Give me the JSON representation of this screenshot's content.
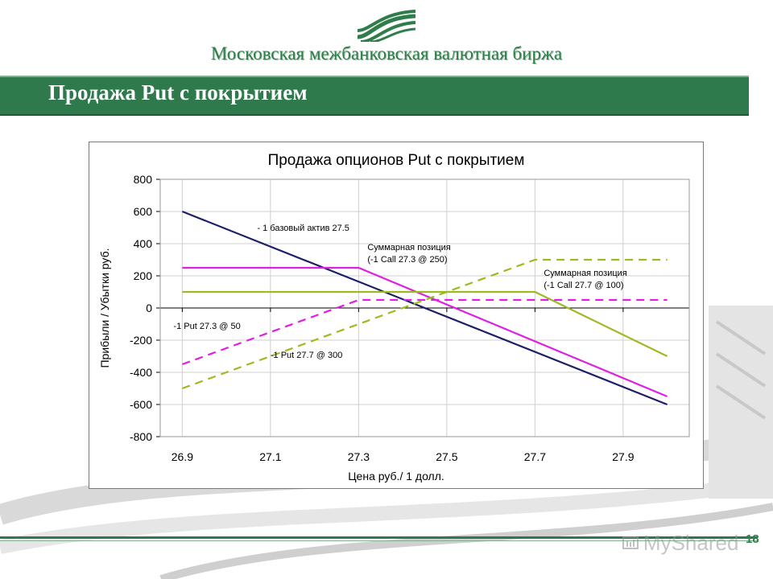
{
  "header": {
    "organization": "Московская межбанковская валютная биржа",
    "slide_title": "Продажа Put с покрытием",
    "logo_icon": "micex-wave-logo-icon",
    "brand_color": "#2f7a4d"
  },
  "footer": {
    "page_number": "18",
    "watermark": "MyShared"
  },
  "chart_data": {
    "type": "line",
    "title": "Продажа опционов Put с покрытием",
    "xlabel": "Цена руб./ 1 долл.",
    "ylabel": "Прибыли / Убытки руб.",
    "xlim": [
      26.85,
      28.05
    ],
    "ylim": [
      -800,
      800
    ],
    "x_ticks": [
      "26.9",
      "27.1",
      "27.3",
      "27.5",
      "27.7",
      "27.9"
    ],
    "y_ticks": [
      "800",
      "600",
      "400",
      "200",
      "0",
      "-200",
      "-400",
      "-600",
      "-800"
    ],
    "grid": true,
    "series": [
      {
        "color": "#1a1f66",
        "dash": false,
        "points": [
          [
            26.9,
            600
          ],
          [
            28.0,
            -600
          ]
        ]
      },
      {
        "color": "#e020e0",
        "dash": false,
        "points": [
          [
            26.9,
            250
          ],
          [
            27.3,
            250
          ],
          [
            28.0,
            -550
          ]
        ]
      },
      {
        "color": "#9cbb23",
        "dash": false,
        "points": [
          [
            26.9,
            100
          ],
          [
            27.7,
            100
          ],
          [
            28.0,
            -300
          ]
        ]
      },
      {
        "color": "#e020e0",
        "dash": true,
        "points": [
          [
            26.9,
            -350
          ],
          [
            27.3,
            50
          ],
          [
            28.0,
            50
          ]
        ]
      },
      {
        "color": "#9cbb23",
        "dash": true,
        "points": [
          [
            26.9,
            -500
          ],
          [
            27.7,
            300
          ],
          [
            28.0,
            300
          ]
        ]
      }
    ],
    "annotations": [
      {
        "lines": [
          "- 1 базовый актив 27.5"
        ],
        "x": 27.07,
        "y": 480
      },
      {
        "lines": [
          "Суммарная позиция",
          "(-1 Call 27.3 @ 250)"
        ],
        "x": 27.32,
        "y": 360
      },
      {
        "lines": [
          "Суммарная позиция",
          "(-1 Call 27.7 @ 100)"
        ],
        "x": 27.72,
        "y": 200
      },
      {
        "lines": [
          "-1 Put 27.3 @ 50"
        ],
        "x": 26.88,
        "y": -130
      },
      {
        "lines": [
          "-1 Put 27.7 @ 300"
        ],
        "x": 27.1,
        "y": -310
      }
    ]
  }
}
